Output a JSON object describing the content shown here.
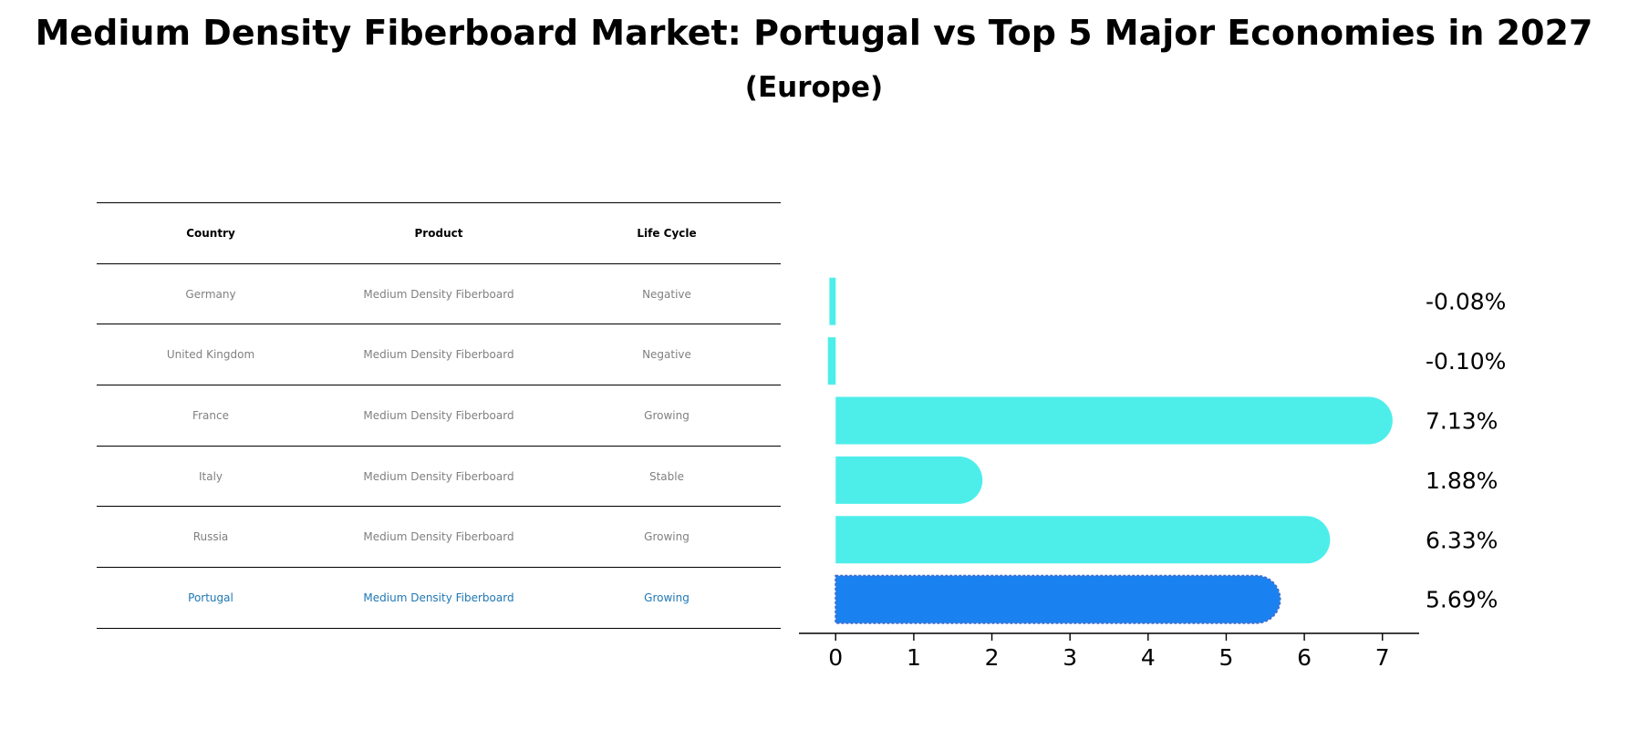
{
  "title": "Medium Density Fiberboard Market: Portugal vs Top 5 Major Economies in 2027",
  "subtitle": "(Europe)",
  "table": {
    "headers": [
      "Country",
      "Product",
      "Life Cycle"
    ],
    "rows": [
      {
        "country": "Germany",
        "product": "Medium Density Fiberboard",
        "life_cycle": "Negative"
      },
      {
        "country": "United Kingdom",
        "product": "Medium Density Fiberboard",
        "life_cycle": "Negative"
      },
      {
        "country": "France",
        "product": "Medium Density Fiberboard",
        "life_cycle": "Growing"
      },
      {
        "country": "Italy",
        "product": "Medium Density Fiberboard",
        "life_cycle": "Stable"
      },
      {
        "country": "Russia",
        "product": "Medium Density Fiberboard",
        "life_cycle": "Growing"
      },
      {
        "country": "Portugal",
        "product": "Medium Density Fiberboard",
        "life_cycle": "Growing"
      }
    ]
  },
  "chart_data": {
    "type": "bar",
    "orientation": "horizontal",
    "title": "Medium Density Fiberboard Market: Portugal vs Top 5 Major Economies in 2027",
    "subtitle": "(Europe)",
    "categories": [
      "Germany",
      "United Kingdom",
      "France",
      "Italy",
      "Russia",
      "Portugal"
    ],
    "values": [
      -0.08,
      -0.1,
      7.13,
      1.88,
      6.33,
      5.69
    ],
    "value_labels": [
      "-0.08%",
      "-0.10%",
      "7.13%",
      "1.88%",
      "6.33%",
      "5.69%"
    ],
    "highlight": "Portugal",
    "xlim": [
      -0.47,
      7.47
    ],
    "xticks": [
      0,
      1,
      2,
      3,
      4,
      5,
      6,
      7
    ],
    "xlabel": "",
    "ylabel": "",
    "grid": false,
    "colors": {
      "default": "#4deeea",
      "highlight": "#1a82f0"
    }
  }
}
